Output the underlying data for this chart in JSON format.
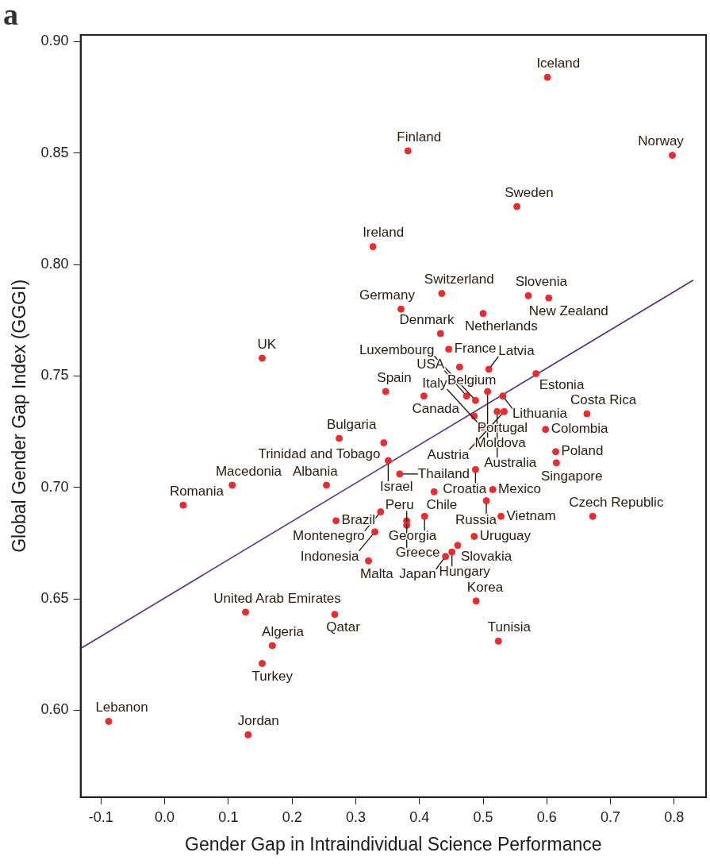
{
  "chart_data": {
    "type": "scatter",
    "xlabel": "Gender Gap in Intraindividual Science Performance",
    "ylabel": "Global Gender Gap Index (GGGI)",
    "xlim": [
      -0.132,
      0.85
    ],
    "ylim": [
      0.561,
      0.903
    ],
    "xticks": [
      -0.1,
      {
        "value": 0,
        "label": "0.0"
      },
      0.1,
      0.2,
      0.3,
      0.4,
      0.5,
      0.6,
      0.7,
      0.8
    ],
    "yticks": [
      {
        "value": 0.6,
        "label": "0.60"
      },
      0.65,
      {
        "value": 0.7,
        "label": "0.70"
      },
      0.75,
      {
        "value": 0.8,
        "label": "0.80"
      },
      0.85,
      {
        "value": 0.9,
        "label": "0.90"
      }
    ],
    "grid": false,
    "series": [
      {
        "color": "#ee2a2f",
        "marker": "circle",
        "x": [
          0.601,
          0.382,
          0.553,
          0.327,
          0.797,
          0.435,
          0.371,
          0.571,
          0.603,
          0.5,
          0.433,
          0.446,
          0.153,
          0.463,
          0.509,
          0.583,
          0.507,
          0.531,
          0.347,
          0.407,
          0.474,
          0.488,
          0.522,
          0.533,
          0.486,
          0.498,
          0.663,
          0.598,
          0.614,
          0.615,
          0.344,
          0.274,
          0.351,
          0.369,
          0.488,
          0.254,
          0.106,
          0.029,
          0.423,
          0.515,
          0.505,
          0.528,
          0.339,
          0.408,
          0.38,
          0.38,
          0.269,
          0.672,
          0.33,
          0.46,
          0.451,
          0.441,
          0.486,
          0.32,
          0.127,
          0.267,
          0.489,
          0.169,
          0.524,
          0.153,
          -0.088,
          0.131
        ],
        "values": [
          0.884,
          0.851,
          0.826,
          0.808,
          0.849,
          0.787,
          0.78,
          0.786,
          0.785,
          0.778,
          0.769,
          0.762,
          0.758,
          0.754,
          0.753,
          0.751,
          0.743,
          0.741,
          0.743,
          0.741,
          0.741,
          0.739,
          0.734,
          0.734,
          0.732,
          0.727,
          0.733,
          0.726,
          0.716,
          0.711,
          0.72,
          0.722,
          0.712,
          0.706,
          0.708,
          0.701,
          0.701,
          0.692,
          0.698,
          0.699,
          0.694,
          0.687,
          0.689,
          0.687,
          0.685,
          0.683,
          0.685,
          0.687,
          0.68,
          0.674,
          0.671,
          0.669,
          0.678,
          0.667,
          0.644,
          0.643,
          0.649,
          0.629,
          0.631,
          0.621,
          0.595,
          0.589
        ]
      },
      {
        "type": "line",
        "color": "#5b2a86",
        "line_style": "solid",
        "x": [
          -0.13,
          0.83
        ],
        "values": [
          0.628,
          0.793
        ]
      }
    ],
    "annotations": [
      "a",
      {
        "text": "Iceland",
        "x": 0.601,
        "y": 0.884
      },
      {
        "text": "Finland",
        "x": 0.382,
        "y": 0.851
      },
      {
        "text": "Sweden",
        "x": 0.553,
        "y": 0.826
      },
      {
        "text": "Ireland",
        "x": 0.327,
        "y": 0.808
      },
      {
        "text": "Norway",
        "x": 0.797,
        "y": 0.849
      },
      {
        "text": "Switzerland",
        "x": 0.435,
        "y": 0.787
      },
      {
        "text": "Germany",
        "x": 0.371,
        "y": 0.78
      },
      {
        "text": "Slovenia",
        "x": 0.571,
        "y": 0.786
      },
      {
        "text": "New Zealand",
        "x": 0.603,
        "y": 0.785
      },
      {
        "text": "Netherlands",
        "x": 0.5,
        "y": 0.778
      },
      {
        "text": "Denmark",
        "x": 0.433,
        "y": 0.769
      },
      {
        "text": "France",
        "x": 0.446,
        "y": 0.762
      },
      {
        "text": "UK",
        "x": 0.153,
        "y": 0.758
      },
      {
        "text": "Belgium",
        "x": 0.463,
        "y": 0.754
      },
      {
        "text": "Latvia",
        "x": 0.509,
        "y": 0.753
      },
      {
        "text": "Estonia",
        "x": 0.583,
        "y": 0.751
      },
      {
        "text": "Moldova",
        "x": 0.507,
        "y": 0.743
      },
      {
        "text": "Lithuania",
        "x": 0.531,
        "y": 0.741
      },
      {
        "text": "Spain",
        "x": 0.347,
        "y": 0.743
      },
      {
        "text": "Canada",
        "x": 0.407,
        "y": 0.741
      },
      {
        "text": "USA",
        "x": 0.474,
        "y": 0.741
      },
      {
        "text": "Luxembourg",
        "x": 0.488,
        "y": 0.739
      },
      {
        "text": "Australia",
        "x": 0.522,
        "y": 0.734
      },
      {
        "text": "Austria",
        "x": 0.533,
        "y": 0.734
      },
      {
        "text": "Portugal",
        "x": 0.486,
        "y": 0.732
      },
      {
        "text": "Italy",
        "x": 0.498,
        "y": 0.727
      },
      {
        "text": "Costa Rica",
        "x": 0.663,
        "y": 0.733
      },
      {
        "text": "Colombia",
        "x": 0.598,
        "y": 0.726
      },
      {
        "text": "Poland",
        "x": 0.614,
        "y": 0.716
      },
      {
        "text": "Singapore",
        "x": 0.615,
        "y": 0.711
      },
      {
        "text": "Trinidad and Tobago",
        "x": 0.344,
        "y": 0.72
      },
      {
        "text": "Bulgaria",
        "x": 0.274,
        "y": 0.722
      },
      {
        "text": "Israel",
        "x": 0.351,
        "y": 0.712
      },
      {
        "text": "Thailand",
        "x": 0.369,
        "y": 0.706
      },
      {
        "text": "Croatia",
        "x": 0.488,
        "y": 0.708
      },
      {
        "text": "Albania",
        "x": 0.254,
        "y": 0.701
      },
      {
        "text": "Macedonia",
        "x": 0.106,
        "y": 0.701
      },
      {
        "text": "Romania",
        "x": 0.029,
        "y": 0.692
      },
      {
        "text": "Chile",
        "x": 0.423,
        "y": 0.698
      },
      {
        "text": "Mexico",
        "x": 0.515,
        "y": 0.699
      },
      {
        "text": "Russia",
        "x": 0.505,
        "y": 0.694
      },
      {
        "text": "Vietnam",
        "x": 0.528,
        "y": 0.687
      },
      {
        "text": "Montenegro",
        "x": 0.339,
        "y": 0.689
      },
      {
        "text": "Georgia",
        "x": 0.408,
        "y": 0.687
      },
      {
        "text": "Greece",
        "x": 0.38,
        "y": 0.685
      },
      {
        "text": "Peru",
        "x": 0.38,
        "y": 0.683
      },
      {
        "text": "Brazil",
        "x": 0.269,
        "y": 0.685
      },
      {
        "text": "Czech Republic",
        "x": 0.672,
        "y": 0.687
      },
      {
        "text": "Indonesia",
        "x": 0.33,
        "y": 0.68
      },
      {
        "text": "Slovakia",
        "x": 0.46,
        "y": 0.674
      },
      {
        "text": "Hungary",
        "x": 0.451,
        "y": 0.671
      },
      {
        "text": "Japan",
        "x": 0.441,
        "y": 0.669
      },
      {
        "text": "Uruguay",
        "x": 0.486,
        "y": 0.678
      },
      {
        "text": "Malta",
        "x": 0.32,
        "y": 0.667
      },
      {
        "text": "United Arab Emirates",
        "x": 0.127,
        "y": 0.644
      },
      {
        "text": "Qatar",
        "x": 0.267,
        "y": 0.643
      },
      {
        "text": "Korea",
        "x": 0.489,
        "y": 0.649
      },
      {
        "text": "Algeria",
        "x": 0.169,
        "y": 0.629
      },
      {
        "text": "Tunisia",
        "x": 0.524,
        "y": 0.631
      },
      {
        "text": "Turkey",
        "x": 0.153,
        "y": 0.621
      },
      {
        "text": "Lebanon",
        "x": -0.088,
        "y": 0.595
      },
      {
        "text": "Jordan",
        "x": 0.131,
        "y": 0.589
      }
    ]
  }
}
